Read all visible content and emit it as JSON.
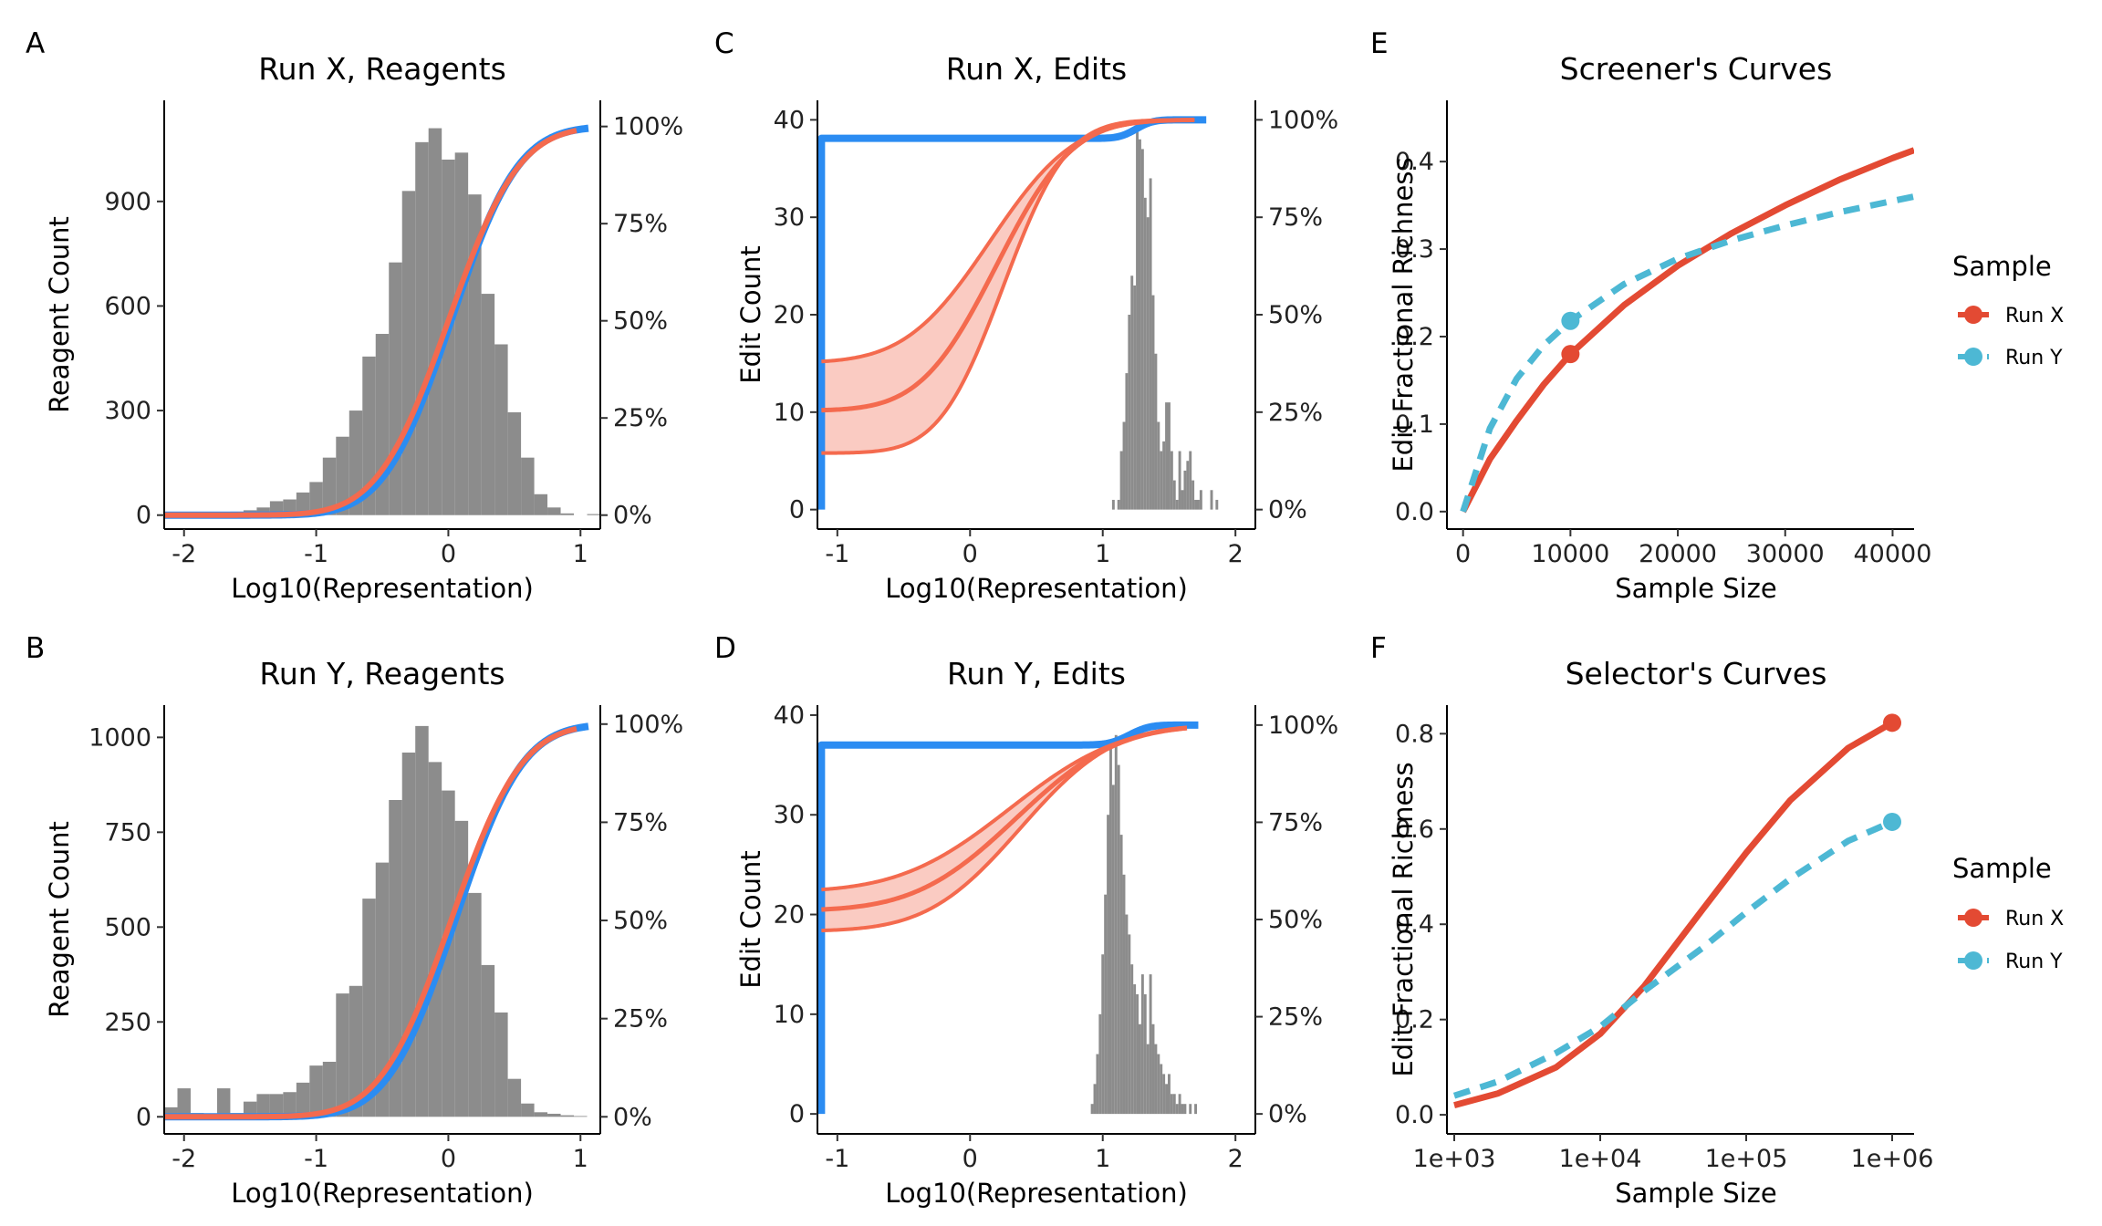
{
  "colors": {
    "hist": "#8C8C8C",
    "red_line": "#F46A4E",
    "red_band": "#F9C2B7",
    "blue_line": "#2B8CF2",
    "run_x": "#E34A33",
    "run_y": "#4DB8D4"
  },
  "panels": [
    {
      "id": "A",
      "letter": "A",
      "title": "Run X, Reagents",
      "type": "reagent_histogram_with_cdf",
      "xlabel": "Log10(Representation)",
      "ylabel": "Reagent Count",
      "xlim": [
        -2.15,
        1.15
      ],
      "ylim": [
        -40,
        1190
      ],
      "x_ticks": [
        -2,
        -1,
        0,
        1
      ],
      "y_ticks": [
        0,
        300,
        600,
        900
      ],
      "right_ticks": [
        "0%",
        "25%",
        "50%",
        "75%",
        "100%"
      ],
      "cdf_top": 1115,
      "hist": {
        "bin_start": -2.15,
        "bin_width": 0.1,
        "counts": [
          3,
          4,
          5,
          6,
          8,
          10,
          14,
          22,
          40,
          45,
          65,
          95,
          165,
          225,
          300,
          455,
          520,
          725,
          930,
          1070,
          1110,
          1020,
          1040,
          920,
          635,
          490,
          295,
          165,
          60,
          22,
          5,
          0,
          3
        ]
      },
      "cdf_red": {
        "mu": 0.0,
        "sigma": 0.42
      },
      "cdf_blue": {
        "mu": 0.02,
        "sigma": 0.4
      }
    },
    {
      "id": "B",
      "letter": "B",
      "title": "Run Y, Reagents",
      "type": "reagent_histogram_with_cdf",
      "xlabel": "Log10(Representation)",
      "ylabel": "Reagent Count",
      "xlim": [
        -2.15,
        1.15
      ],
      "ylim": [
        -45,
        1085
      ],
      "x_ticks": [
        -2,
        -1,
        0,
        1
      ],
      "y_ticks": [
        0,
        250,
        500,
        750,
        1000
      ],
      "right_ticks": [
        "0%",
        "25%",
        "50%",
        "75%",
        "100%"
      ],
      "cdf_top": 1035,
      "hist": {
        "bin_start": -2.15,
        "bin_width": 0.1,
        "counts": [
          25,
          75,
          10,
          5,
          75,
          10,
          40,
          60,
          60,
          65,
          90,
          135,
          145,
          325,
          345,
          575,
          670,
          835,
          960,
          1030,
          935,
          860,
          780,
          590,
          400,
          275,
          100,
          35,
          12,
          8,
          4,
          2,
          0
        ]
      },
      "cdf_red": {
        "mu": 0.02,
        "sigma": 0.42
      },
      "cdf_blue": {
        "mu": 0.05,
        "sigma": 0.4
      }
    },
    {
      "id": "C",
      "letter": "C",
      "title": "Run X, Edits",
      "type": "edit_histogram_with_fit",
      "xlabel": "Log10(Representation)",
      "ylabel": "Edit Count",
      "xlim": [
        -1.15,
        2.15
      ],
      "ylim": [
        -2,
        42
      ],
      "x_ticks": [
        -1,
        0,
        1,
        2
      ],
      "y_ticks": [
        0,
        10,
        20,
        30,
        40
      ],
      "right_ticks": [
        "0%",
        "25%",
        "50%",
        "75%",
        "100%"
      ],
      "fit_start": -1.12,
      "fit_end": 1.78,
      "fit_center": {
        "y0": 10.2,
        "top": 40.0,
        "mu": 0.2,
        "sigma": 0.45
      },
      "fit_upper": {
        "y0": 15.2,
        "top": 40.0,
        "mu": 0.15,
        "sigma": 0.5
      },
      "fit_lower": {
        "y0": 5.8,
        "top": 40.0,
        "mu": 0.25,
        "sigma": 0.38
      },
      "blue_cdf": {
        "start": -1.12,
        "end": 1.78,
        "base": 38.1,
        "top": 40.0,
        "mu": 1.25,
        "sigma": 0.1
      },
      "hist": {
        "bin_start": 1.07,
        "bin_width": 0.02,
        "counts": [
          1,
          0,
          1,
          6,
          9,
          14,
          20,
          24,
          23,
          39,
          38,
          37,
          32,
          30,
          34,
          22,
          16,
          9,
          6,
          7,
          11,
          11,
          6,
          3,
          1,
          6,
          2,
          4,
          5,
          6,
          3,
          1,
          1,
          2,
          0,
          0,
          0,
          2,
          0,
          1
        ]
      }
    },
    {
      "id": "D",
      "letter": "D",
      "title": "Run Y, Edits",
      "type": "edit_histogram_with_fit",
      "xlabel": "Log10(Representation)",
      "ylabel": "Edit Count",
      "xlim": [
        -1.15,
        2.15
      ],
      "ylim": [
        -2,
        41
      ],
      "x_ticks": [
        -1,
        0,
        1,
        2
      ],
      "y_ticks": [
        0,
        10,
        20,
        30,
        40
      ],
      "right_ticks": [
        "0%",
        "25%",
        "50%",
        "75%",
        "100%"
      ],
      "fit_start": -1.12,
      "fit_end": 1.72,
      "fit_center": {
        "y0": 20.5,
        "top": 39.0,
        "mu": 0.35,
        "sigma": 0.6
      },
      "fit_upper": {
        "y0": 22.5,
        "top": 39.0,
        "mu": 0.3,
        "sigma": 0.65
      },
      "fit_lower": {
        "y0": 18.4,
        "top": 39.0,
        "mu": 0.38,
        "sigma": 0.55
      },
      "blue_cdf": {
        "start": -1.12,
        "end": 1.72,
        "base": 37.0,
        "top": 39.0,
        "mu": 1.2,
        "sigma": 0.12
      },
      "hist": {
        "bin_start": 0.91,
        "bin_width": 0.02,
        "counts": [
          1,
          3,
          6,
          10,
          16,
          22,
          30,
          37,
          33,
          38,
          35,
          28,
          24,
          20,
          18,
          15,
          13,
          12,
          9,
          14,
          12,
          7,
          14,
          9,
          7,
          6,
          5,
          4,
          3,
          4,
          2,
          2,
          1,
          2,
          1,
          1,
          0,
          1,
          0,
          1
        ]
      }
    },
    {
      "id": "E",
      "letter": "E",
      "title": "Screener's Curves",
      "type": "line",
      "xlabel": "Sample Size",
      "ylabel": "Edit Fractional Richness",
      "xscale": "linear",
      "xlim": [
        -1500,
        42000
      ],
      "ylim": [
        -0.02,
        0.47
      ],
      "x_ticks": [
        0,
        10000,
        20000,
        30000,
        40000
      ],
      "x_tick_labels": [
        "0",
        "10000",
        "20000",
        "30000",
        "40000"
      ],
      "y_ticks": [
        0.0,
        0.1,
        0.2,
        0.3,
        0.4
      ],
      "y_tick_labels": [
        "0.0",
        "0.1",
        "0.2",
        "0.3",
        "0.4"
      ],
      "series": [
        {
          "name": "Run X",
          "x": [
            0,
            2500,
            5000,
            7500,
            10000,
            15000,
            20000,
            25000,
            30000,
            35000,
            40000,
            42000
          ],
          "y": [
            0.0,
            0.06,
            0.104,
            0.145,
            0.18,
            0.236,
            0.281,
            0.318,
            0.35,
            0.379,
            0.404,
            0.413
          ],
          "point": {
            "x": 10000,
            "y": 0.18
          }
        },
        {
          "name": "Run Y",
          "x": [
            0,
            2500,
            5000,
            7500,
            10000,
            15000,
            20000,
            25000,
            30000,
            35000,
            40000,
            42000
          ],
          "y": [
            0.0,
            0.095,
            0.152,
            0.19,
            0.218,
            0.26,
            0.289,
            0.31,
            0.327,
            0.342,
            0.355,
            0.36
          ],
          "point": {
            "x": 10000,
            "y": 0.218
          }
        }
      ],
      "legend": {
        "title": "Sample",
        "placement": "right"
      }
    },
    {
      "id": "F",
      "letter": "F",
      "title": "Selector's Curves",
      "type": "line",
      "xlabel": "Sample Size",
      "ylabel": "Edit Fractional Richness",
      "xscale": "log10",
      "xlim": [
        2.95,
        6.15
      ],
      "ylim": [
        -0.04,
        0.86
      ],
      "x_ticks": [
        3,
        4,
        5,
        6
      ],
      "x_tick_labels": [
        "1e+03",
        "1e+04",
        "1e+05",
        "1e+06"
      ],
      "y_ticks": [
        0.0,
        0.2,
        0.4,
        0.6,
        0.8
      ],
      "y_tick_labels": [
        "0.0",
        "0.2",
        "0.4",
        "0.6",
        "0.8"
      ],
      "series": [
        {
          "name": "Run X",
          "x": [
            1000,
            2000,
            5000,
            10000,
            20000,
            50000,
            100000,
            200000,
            500000,
            1000000
          ],
          "y": [
            0.02,
            0.045,
            0.1,
            0.17,
            0.27,
            0.43,
            0.55,
            0.66,
            0.77,
            0.823
          ],
          "point": {
            "x": 1000000,
            "y": 0.823
          }
        },
        {
          "name": "Run Y",
          "x": [
            1000,
            2000,
            5000,
            10000,
            20000,
            50000,
            100000,
            200000,
            500000,
            1000000
          ],
          "y": [
            0.04,
            0.07,
            0.13,
            0.185,
            0.26,
            0.35,
            0.425,
            0.495,
            0.575,
            0.615
          ],
          "point": {
            "x": 1000000,
            "y": 0.615
          }
        }
      ],
      "legend": {
        "title": "Sample",
        "placement": "right"
      }
    }
  ]
}
